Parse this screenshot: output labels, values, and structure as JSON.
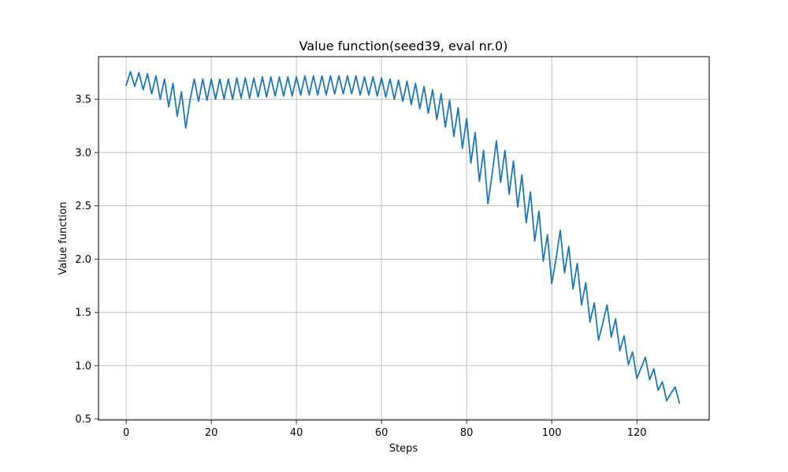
{
  "chart_data": {
    "type": "line",
    "title": "Value function(seed39, eval nr.0)",
    "xlabel": "Steps",
    "ylabel": "Value function",
    "xlim": [
      -6.5,
      137
    ],
    "ylim": [
      0.49,
      3.9
    ],
    "xticks": [
      0,
      20,
      40,
      60,
      80,
      100,
      120
    ],
    "yticks": [
      0.5,
      1.0,
      1.5,
      2.0,
      2.5,
      3.0,
      3.5
    ],
    "ytick_labels": [
      "0.5",
      "1.0",
      "1.5",
      "2.0",
      "2.5",
      "3.0",
      "3.5"
    ],
    "grid": true,
    "line_color": "#1f77b4",
    "series": [
      {
        "x": [
          0,
          1,
          2,
          3,
          4,
          5,
          6,
          7,
          8,
          9,
          10,
          11,
          12,
          13,
          14,
          15,
          16,
          17,
          18,
          19,
          20,
          21,
          22,
          23,
          24,
          25,
          26,
          27,
          28,
          29,
          30,
          31,
          32,
          33,
          34,
          35,
          36,
          37,
          38,
          39,
          40,
          41,
          42,
          43,
          44,
          45,
          46,
          47,
          48,
          49,
          50,
          51,
          52,
          53,
          54,
          55,
          56,
          57,
          58,
          59,
          60,
          61,
          62,
          63,
          64,
          65,
          66,
          67,
          68,
          69,
          70,
          71,
          72,
          73,
          74,
          75,
          76,
          77,
          78,
          79,
          80,
          81,
          82,
          83,
          84,
          85,
          86,
          87,
          88,
          89,
          90,
          91,
          92,
          93,
          94,
          95,
          96,
          97,
          98,
          99,
          100,
          101,
          102,
          103,
          104,
          105,
          106,
          107,
          108,
          109,
          110,
          111,
          112,
          113,
          114,
          115,
          116,
          117,
          118,
          119,
          120,
          121,
          122,
          123,
          124,
          125,
          126,
          127,
          128,
          129,
          130
        ],
        "values": [
          3.63,
          3.76,
          3.62,
          3.75,
          3.59,
          3.74,
          3.55,
          3.72,
          3.5,
          3.69,
          3.43,
          3.65,
          3.34,
          3.57,
          3.23,
          3.49,
          3.69,
          3.48,
          3.69,
          3.49,
          3.69,
          3.5,
          3.69,
          3.5,
          3.69,
          3.5,
          3.7,
          3.51,
          3.7,
          3.51,
          3.7,
          3.52,
          3.71,
          3.52,
          3.71,
          3.53,
          3.71,
          3.53,
          3.71,
          3.53,
          3.71,
          3.54,
          3.72,
          3.54,
          3.72,
          3.54,
          3.72,
          3.54,
          3.72,
          3.55,
          3.72,
          3.55,
          3.72,
          3.55,
          3.72,
          3.54,
          3.71,
          3.54,
          3.71,
          3.53,
          3.7,
          3.52,
          3.69,
          3.5,
          3.68,
          3.48,
          3.67,
          3.45,
          3.65,
          3.41,
          3.62,
          3.37,
          3.59,
          3.31,
          3.55,
          3.24,
          3.49,
          3.15,
          3.42,
          3.04,
          3.32,
          2.9,
          3.19,
          2.73,
          3.02,
          2.52,
          2.8,
          3.11,
          2.72,
          3.02,
          2.61,
          2.92,
          2.49,
          2.79,
          2.34,
          2.63,
          2.17,
          2.45,
          1.98,
          2.23,
          1.77,
          2.0,
          2.27,
          1.87,
          2.12,
          1.72,
          1.96,
          1.57,
          1.78,
          1.41,
          1.59,
          1.24,
          1.4,
          1.57,
          1.27,
          1.44,
          1.14,
          1.28,
          1.01,
          1.13,
          0.88,
          0.98,
          1.08,
          0.87,
          0.97,
          0.77,
          0.85,
          0.67,
          0.74,
          0.8,
          0.65
        ]
      }
    ]
  }
}
